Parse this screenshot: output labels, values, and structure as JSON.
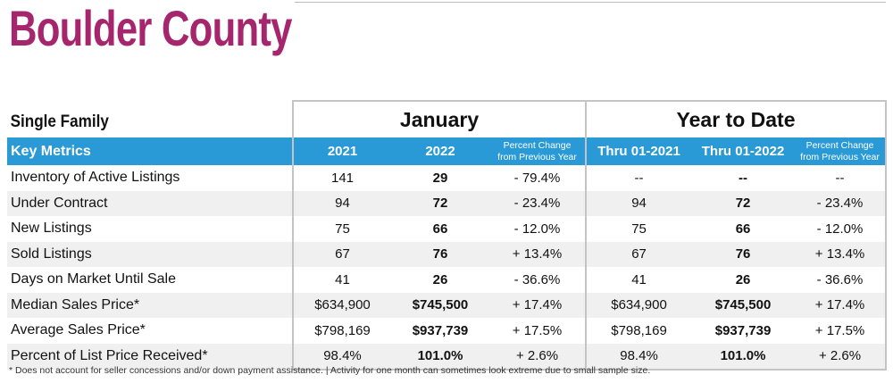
{
  "title": "Boulder County",
  "table": {
    "section_label": "Single Family",
    "groups": [
      "January",
      "Year to Date"
    ],
    "headers": {
      "metric": "Key Metrics",
      "jan_prev": "2021",
      "jan_curr": "2022",
      "pct_line1": "Percent Change",
      "pct_line2": "from Previous Year",
      "ytd_prev": "Thru 01-2021",
      "ytd_curr": "Thru 01-2022"
    },
    "rows": [
      {
        "metric": "Inventory of Active Listings",
        "jan_prev": "141",
        "jan_curr": "29",
        "jan_pct": "- 79.4%",
        "ytd_prev": "--",
        "ytd_curr": "--",
        "ytd_pct": "--"
      },
      {
        "metric": "Under Contract",
        "jan_prev": "94",
        "jan_curr": "72",
        "jan_pct": "- 23.4%",
        "ytd_prev": "94",
        "ytd_curr": "72",
        "ytd_pct": "- 23.4%"
      },
      {
        "metric": "New Listings",
        "jan_prev": "75",
        "jan_curr": "66",
        "jan_pct": "- 12.0%",
        "ytd_prev": "75",
        "ytd_curr": "66",
        "ytd_pct": "- 12.0%"
      },
      {
        "metric": "Sold Listings",
        "jan_prev": "67",
        "jan_curr": "76",
        "jan_pct": "+ 13.4%",
        "ytd_prev": "67",
        "ytd_curr": "76",
        "ytd_pct": "+ 13.4%"
      },
      {
        "metric": "Days on Market Until Sale",
        "jan_prev": "41",
        "jan_curr": "26",
        "jan_pct": "- 36.6%",
        "ytd_prev": "41",
        "ytd_curr": "26",
        "ytd_pct": "- 36.6%"
      },
      {
        "metric": "Median Sales Price*",
        "jan_prev": "$634,900",
        "jan_curr": "$745,500",
        "jan_pct": "+ 17.4%",
        "ytd_prev": "$634,900",
        "ytd_curr": "$745,500",
        "ytd_pct": "+ 17.4%"
      },
      {
        "metric": "Average Sales Price*",
        "jan_prev": "$798,169",
        "jan_curr": "$937,739",
        "jan_pct": "+ 17.5%",
        "ytd_prev": "$798,169",
        "ytd_curr": "$937,739",
        "ytd_pct": "+ 17.5%"
      },
      {
        "metric": "Percent of List Price Received*",
        "jan_prev": "98.4%",
        "jan_curr": "101.0%",
        "jan_pct": "+ 2.6%",
        "ytd_prev": "98.4%",
        "ytd_curr": "101.0%",
        "ytd_pct": "+ 2.6%"
      }
    ]
  },
  "footnote": "* Does not account for seller concessions and/or down payment assistance.  |  Activity for one month can sometimes look extreme due to small sample size.",
  "colors": {
    "title": "#a6266e",
    "header_bg": "#2a9ad7",
    "alt_row": "#f0f0f0",
    "divider": "#c4c4c4"
  }
}
